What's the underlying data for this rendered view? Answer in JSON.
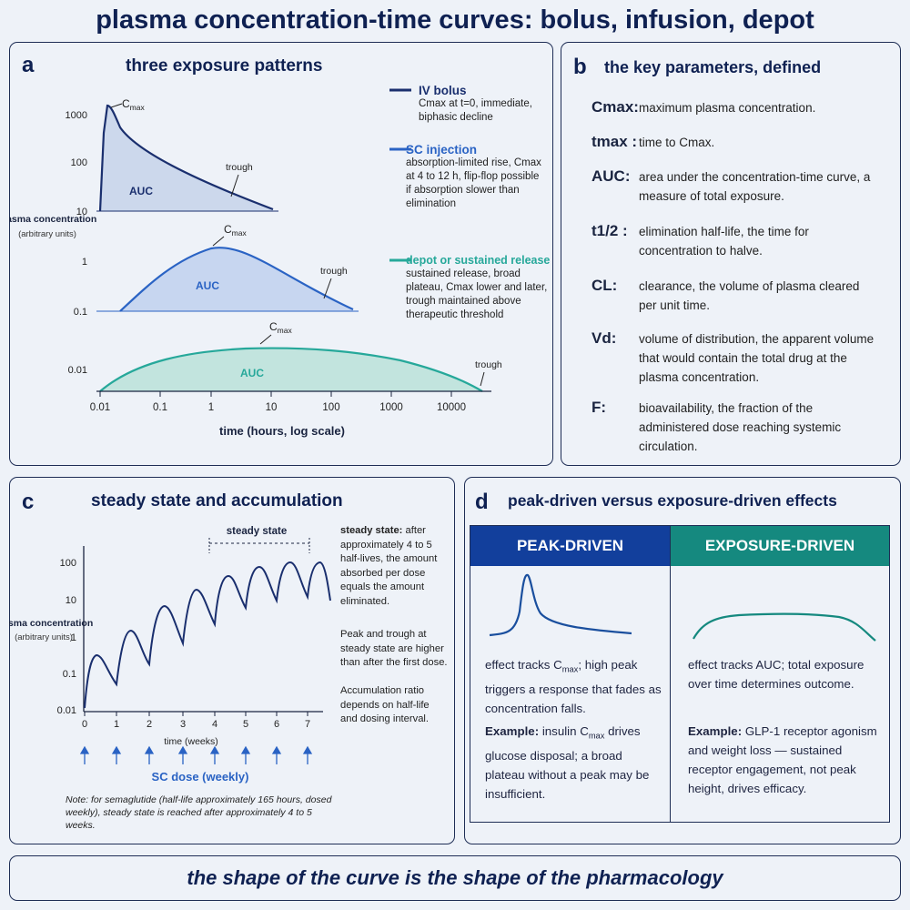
{
  "title": "plasma concentration-time curves: bolus, infusion, depot",
  "colors": {
    "iv_bolus": "#1a2f6e",
    "sc_injection": "#2a63c4",
    "depot": "#26a89a",
    "peak_header": "#123f9c",
    "exposure_header": "#15897f"
  },
  "panel_a": {
    "label": "a",
    "title": "three exposure patterns",
    "y_axis_label": "plasma concentration",
    "y_axis_sub": "(arbitrary units)",
    "x_axis_label": "time (hours, log scale)",
    "x_ticks": [
      "0.01",
      "0.1",
      "1",
      "10",
      "100",
      "1000",
      "10000"
    ],
    "curve1_y_ticks": [
      "1000",
      "100",
      "10"
    ],
    "curve2_y_ticks": [
      "1",
      "0.1"
    ],
    "curve3_y_ticks": [
      "0.01"
    ],
    "cmax_label": "C",
    "cmax_sub": "max",
    "auc_label": "AUC",
    "trough_label": "trough",
    "legend": [
      {
        "title": "IV bolus",
        "text": "Cmax at t=0, immediate, biphasic decline"
      },
      {
        "title": "SC injection",
        "text": "absorption-limited rise, Cmax at 4 to 12 h, flip-flop possible if absorption slower than elimination"
      },
      {
        "title": "depot or sustained release",
        "text": "sustained release, broad plateau, Cmax lower and later, trough maintained above therapeutic threshold"
      }
    ]
  },
  "panel_b": {
    "label": "b",
    "title": "the key parameters, defined",
    "definitions": [
      {
        "term": "Cmax:",
        "desc": "maximum plasma concentration."
      },
      {
        "term": "tmax :",
        "desc": "time to Cmax."
      },
      {
        "term": "AUC:",
        "desc": "area under the concentration-time curve, a measure of total exposure."
      },
      {
        "term": "t1/2 :",
        "desc": "elimination half-life, the time for concentration to halve."
      },
      {
        "term": "CL:",
        "desc": "clearance, the volume of plasma cleared per unit time."
      },
      {
        "term": "Vd:",
        "desc": "volume of distribution, the apparent volume that would contain the total drug at the plasma concentration."
      },
      {
        "term": "F:",
        "desc": "bioavailability, the fraction of the administered dose reaching systemic circulation."
      }
    ]
  },
  "panel_c": {
    "label": "c",
    "title": "steady state and accumulation",
    "steady_state_label": "steady state",
    "y_axis_label": "plasma concentration",
    "y_axis_sub": "(arbitrary units)",
    "y_ticks": [
      "100",
      "10",
      "1",
      "0.1",
      "0.01"
    ],
    "x_ticks": [
      "0",
      "1",
      "2",
      "3",
      "4",
      "5",
      "6",
      "7"
    ],
    "x_axis_label": "time (weeks)",
    "dose_label": "SC dose (weekly)",
    "notes": {
      "steady_state_bold": "steady state:",
      "steady_state_text": "after approximately 4 to 5 half-lives, the amount absorbed per dose equals the amount eliminated.",
      "peak_trough": "Peak and trough at steady state are higher than after the first dose.",
      "accumulation": "Accumulation ratio depends on half-life and dosing interval."
    },
    "footnote": "Note: for semaglutide (half-life approximately 165 hours, dosed weekly), steady state is reached after approximately 4 to 5 weeks."
  },
  "panel_d": {
    "label": "d",
    "title": "peak-driven versus exposure-driven effects",
    "peak": {
      "header": "PEAK-DRIVEN",
      "text_pre": "effect tracks C",
      "text_post": "; high peak triggers a response that fades as concentration falls.",
      "example_bold": "Example:",
      "example_pre": " insulin C",
      "example_post": " drives glucose disposal; a broad plateau without a peak may be insufficient."
    },
    "exposure": {
      "header": "EXPOSURE-DRIVEN",
      "text": "effect tracks AUC; total exposure over time determines outcome.",
      "example_bold": "Example:",
      "example_text": " GLP-1 receptor agonism and weight loss — sustained receptor engagement, not peak height, drives efficacy."
    }
  },
  "footer": "the shape of the curve is the shape of the pharmacology"
}
